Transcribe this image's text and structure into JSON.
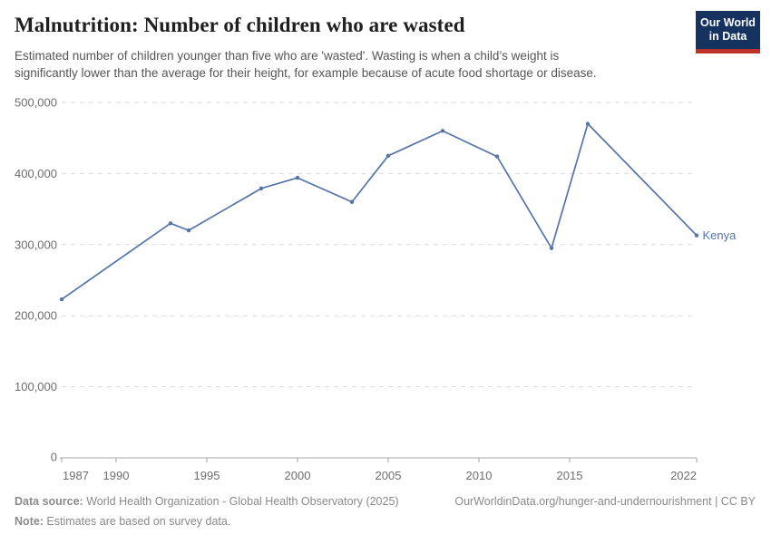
{
  "header": {
    "title": "Malnutrition: Number of children who are wasted",
    "subtitle": "Estimated number of children younger than five who are 'wasted'. Wasting is when a child’s weight is significantly lower than the average for their height, for example because of acute food shortage or disease.",
    "logo": {
      "line1": "Our World",
      "line2": "in Data"
    }
  },
  "colors": {
    "series_blue": "#5574a8",
    "gridline": "#dadada",
    "axis": "#a6a6a6",
    "tick_label": "#6d6d6d",
    "logo_bg": "#163360",
    "logo_stripe": "#bc3228"
  },
  "chart_data": {
    "type": "line",
    "title": "Malnutrition: Number of children who are wasted",
    "xlabel": "",
    "ylabel": "",
    "xlim": [
      1987,
      2022
    ],
    "ylim": [
      0,
      500000
    ],
    "x_ticks": [
      1987,
      1990,
      1995,
      2000,
      2005,
      2010,
      2015,
      2022
    ],
    "y_ticks": [
      0,
      100000,
      200000,
      300000,
      400000,
      500000
    ],
    "grid": "horizontal-dashed",
    "legend_position": "end-of-line-label",
    "x": [
      1987,
      1993,
      1994,
      1998,
      2000,
      2003,
      2005,
      2008,
      2011,
      2014,
      2016,
      2022
    ],
    "series": [
      {
        "name": "Kenya",
        "color": "#5574a8",
        "values": [
          223000,
          330000,
          320000,
          379000,
          394000,
          360000,
          425000,
          460000,
          424000,
          295000,
          470000,
          313000
        ]
      }
    ]
  },
  "footer": {
    "datasource_label": "Data source:",
    "datasource_text": " World Health Organization - Global Health Observatory (2025)",
    "note_label": "Note:",
    "note_text": " Estimates are based on survey data.",
    "url": "OurWorldinData.org/hunger-and-undernourishment | CC BY"
  }
}
